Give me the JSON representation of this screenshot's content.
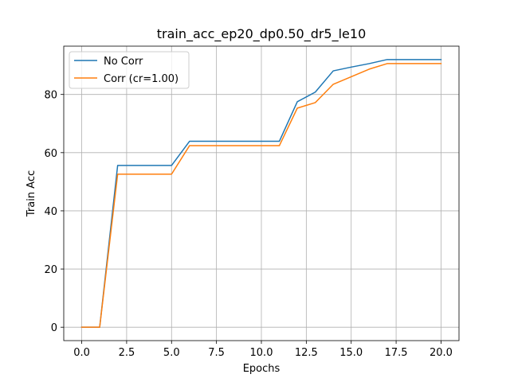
{
  "chart_data": {
    "type": "line",
    "title": "train_acc_ep20_dp0.50_dr5_le10",
    "xlabel": "Epochs",
    "ylabel": "Train Acc",
    "xlim": [
      -1.0,
      21.0
    ],
    "ylim": [
      -4.6,
      96.6
    ],
    "xticks": [
      0.0,
      2.5,
      5.0,
      7.5,
      10.0,
      12.5,
      15.0,
      17.5,
      20.0
    ],
    "xtick_labels": [
      "0.0",
      "2.5",
      "5.0",
      "7.5",
      "10.0",
      "12.5",
      "15.0",
      "17.5",
      "20.0"
    ],
    "yticks": [
      0,
      20,
      40,
      60,
      80
    ],
    "ytick_labels": [
      "0",
      "20",
      "40",
      "60",
      "80"
    ],
    "grid": true,
    "legend_position": "top-left",
    "x": [
      0,
      1,
      2,
      3,
      4,
      5,
      6,
      7,
      8,
      9,
      10,
      11,
      12,
      13,
      14,
      15,
      16,
      17,
      18,
      19,
      20
    ],
    "series": [
      {
        "name": "No Corr",
        "color": "#1f77b4",
        "values": [
          0,
          0,
          55.6,
          55.6,
          55.6,
          55.6,
          63.9,
          63.9,
          63.9,
          63.9,
          63.9,
          63.9,
          77.5,
          80.8,
          88.1,
          89.4,
          90.6,
          92.0,
          92.0,
          92.0,
          92.0
        ]
      },
      {
        "name": "Corr (cr=1.00)",
        "color": "#ff7f0e",
        "values": [
          0,
          0,
          52.6,
          52.6,
          52.6,
          52.6,
          62.4,
          62.4,
          62.4,
          62.4,
          62.4,
          62.4,
          75.3,
          77.2,
          83.5,
          86.1,
          88.7,
          90.6,
          90.6,
          90.6,
          90.6
        ]
      }
    ]
  }
}
